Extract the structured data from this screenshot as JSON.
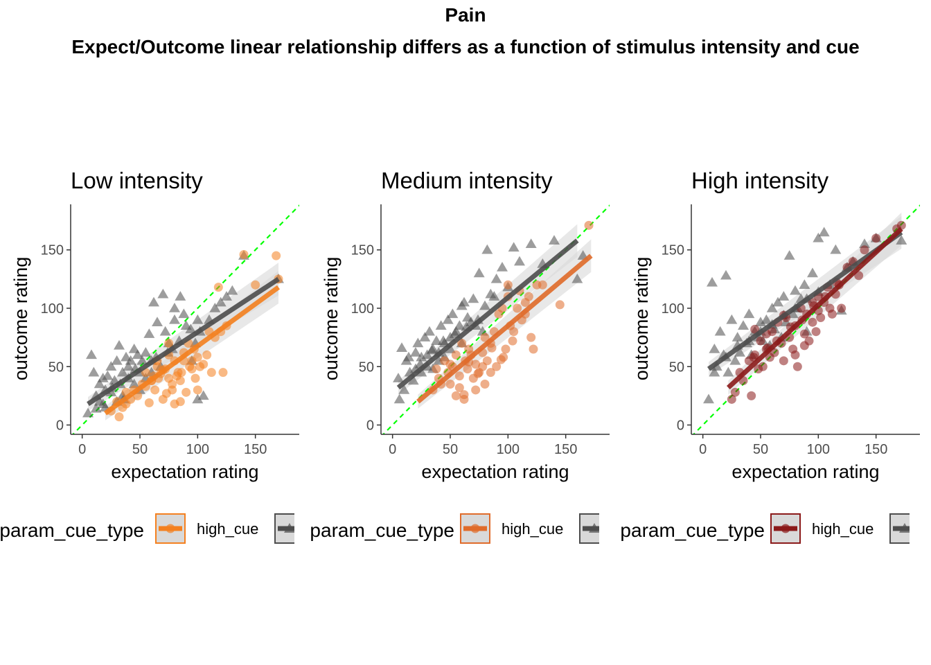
{
  "figure": {
    "title": "Pain",
    "subtitle": "Expect/Outcome linear relationship differs as a function of stimulus intensity and cue"
  },
  "colors": {
    "background": "#ffffff",
    "axis": "#333333",
    "tick_text": "#4d4d4d",
    "identity_line": "#00ff00",
    "low_cue": "#4d4d4d",
    "ribbon": "#d9d9d9"
  },
  "chart_data": [
    {
      "type": "scatter",
      "title": "Low intensity",
      "xlabel": "expectation rating",
      "ylabel": "outcome rating",
      "xlim": [
        -10,
        188
      ],
      "ylim": [
        -8,
        189
      ],
      "xticks": [
        0,
        50,
        100,
        150
      ],
      "yticks": [
        0,
        50,
        100,
        150
      ],
      "grid": false,
      "identity_line": true,
      "high_color": "#f4801f",
      "legend": {
        "title": "param_cue_type",
        "items": [
          "high_cue"
        ],
        "position": "bottom"
      },
      "series": [
        {
          "name": "high_cue",
          "marker": "circle",
          "fit": {
            "x": [
              20,
              170
            ],
            "y": [
              10,
              118
            ]
          },
          "x": [
            32,
            25,
            38,
            45,
            52,
            55,
            58,
            60,
            62,
            63,
            65,
            66,
            68,
            70,
            72,
            73,
            75,
            75,
            78,
            80,
            80,
            82,
            85,
            85,
            86,
            88,
            90,
            92,
            95,
            95,
            97,
            98,
            100,
            100,
            102,
            105,
            108,
            110,
            112,
            115,
            118,
            120,
            122,
            125,
            140,
            150,
            168,
            170,
            55,
            65,
            48,
            42,
            38,
            35,
            30,
            75,
            83,
            88,
            93,
            60,
            70,
            78
          ],
          "y": [
            7,
            12,
            18,
            30,
            35,
            45,
            19,
            38,
            42,
            30,
            55,
            40,
            44,
            22,
            48,
            27,
            40,
            60,
            35,
            18,
            55,
            42,
            20,
            38,
            45,
            62,
            28,
            70,
            48,
            55,
            65,
            40,
            30,
            58,
            50,
            52,
            60,
            80,
            45,
            75,
            118,
            80,
            45,
            85,
            146,
            120,
            145,
            125,
            33,
            50,
            25,
            22,
            28,
            15,
            20,
            70,
            45,
            55,
            50,
            38,
            47,
            30
          ]
        },
        {
          "name": "",
          "marker": "triangle",
          "fit": {
            "x": [
              5,
              170
            ],
            "y": [
              18,
              125
            ]
          },
          "x": [
            5,
            8,
            10,
            12,
            15,
            15,
            18,
            20,
            20,
            22,
            25,
            25,
            28,
            30,
            30,
            32,
            33,
            35,
            35,
            38,
            40,
            40,
            42,
            45,
            45,
            48,
            50,
            50,
            52,
            55,
            55,
            58,
            60,
            60,
            62,
            65,
            68,
            70,
            72,
            75,
            78,
            80,
            80,
            85,
            88,
            90,
            95,
            98,
            100,
            100,
            102,
            105,
            110,
            115,
            120,
            125,
            130,
            140,
            170,
            12,
            18,
            26,
            36,
            46,
            64,
            74,
            84,
            94
          ],
          "y": [
            10,
            60,
            45,
            25,
            35,
            20,
            40,
            15,
            30,
            42,
            50,
            28,
            38,
            55,
            20,
            68,
            35,
            45,
            25,
            58,
            50,
            40,
            55,
            65,
            35,
            60,
            45,
            30,
            55,
            62,
            40,
            78,
            55,
            45,
            105,
            88,
            50,
            112,
            80,
            70,
            65,
            90,
            100,
            110,
            95,
            85,
            55,
            70,
            22,
            90,
            80,
            25,
            90,
            100,
            105,
            110,
            115,
            145,
            125,
            14,
            18,
            32,
            22,
            48,
            58,
            62,
            72,
            82
          ]
        }
      ]
    },
    {
      "type": "scatter",
      "title": "Medium intensity",
      "xlabel": "expectation rating",
      "ylabel": "outcome rating",
      "xlim": [
        -10,
        188
      ],
      "ylim": [
        -8,
        189
      ],
      "xticks": [
        0,
        50,
        100,
        150
      ],
      "yticks": [
        0,
        50,
        100,
        150
      ],
      "grid": false,
      "identity_line": true,
      "high_color": "#e06b2a",
      "legend": {
        "title": "param_cue_type",
        "items": [
          "high_cue"
        ],
        "position": "bottom"
      },
      "series": [
        {
          "name": "high_cue",
          "marker": "circle",
          "fit": {
            "x": [
              22,
              172
            ],
            "y": [
              20,
              145
            ]
          },
          "x": [
            35,
            40,
            45,
            48,
            50,
            52,
            55,
            55,
            58,
            60,
            62,
            63,
            65,
            66,
            68,
            70,
            72,
            72,
            75,
            78,
            80,
            80,
            82,
            85,
            85,
            88,
            90,
            92,
            95,
            96,
            98,
            100,
            100,
            102,
            105,
            108,
            110,
            112,
            115,
            118,
            120,
            122,
            125,
            130,
            145,
            170,
            42,
            58,
            66,
            74,
            86,
            94,
            104,
            115,
            50,
            38,
            62,
            78
          ],
          "y": [
            30,
            40,
            55,
            45,
            35,
            50,
            25,
            60,
            42,
            70,
            22,
            55,
            48,
            65,
            60,
            40,
            30,
            52,
            45,
            62,
            35,
            75,
            55,
            70,
            45,
            80,
            50,
            95,
            100,
            58,
            65,
            110,
            120,
            85,
            80,
            100,
            115,
            90,
            95,
            110,
            75,
            65,
            120,
            120,
            103,
            171,
            35,
            32,
            54,
            44,
            66,
            56,
            72,
            105,
            52,
            48,
            26,
            50
          ]
        },
        {
          "name": "",
          "marker": "triangle",
          "fit": {
            "x": [
              5,
              160
            ],
            "y": [
              32,
              158
            ]
          },
          "x": [
            5,
            8,
            10,
            12,
            15,
            18,
            20,
            20,
            22,
            25,
            25,
            28,
            30,
            30,
            32,
            35,
            35,
            38,
            40,
            40,
            42,
            45,
            45,
            48,
            50,
            50,
            52,
            55,
            58,
            60,
            60,
            62,
            65,
            68,
            70,
            72,
            75,
            78,
            80,
            82,
            85,
            88,
            90,
            95,
            100,
            105,
            110,
            120,
            130,
            140,
            160,
            165,
            6,
            14,
            24,
            34,
            44,
            54,
            64,
            74
          ],
          "y": [
            40,
            66,
            30,
            55,
            45,
            38,
            62,
            48,
            70,
            58,
            45,
            75,
            60,
            50,
            80,
            65,
            48,
            72,
            55,
            62,
            85,
            70,
            58,
            90,
            75,
            65,
            95,
            80,
            85,
            70,
            102,
            105,
            92,
            88,
            108,
            85,
            130,
            80,
            102,
            150,
            112,
            110,
            125,
            135,
            118,
            152,
            140,
            155,
            138,
            158,
            125,
            145,
            22,
            58,
            52,
            64,
            72,
            78,
            84,
            90
          ]
        }
      ]
    },
    {
      "type": "scatter",
      "title": "High intensity",
      "xlabel": "expectation rating",
      "ylabel": "outcome rating",
      "xlim": [
        -10,
        188
      ],
      "ylim": [
        -8,
        189
      ],
      "xticks": [
        0,
        50,
        100,
        150
      ],
      "yticks": [
        0,
        50,
        100,
        150
      ],
      "grid": false,
      "identity_line": true,
      "high_color": "#8b1a1a",
      "legend": {
        "title": "param_cue_type",
        "items": [
          "high_cue"
        ],
        "position": "bottom"
      },
      "series": [
        {
          "name": "high_cue",
          "marker": "circle",
          "fit": {
            "x": [
              22,
              172
            ],
            "y": [
              32,
              168
            ]
          },
          "x": [
            25,
            28,
            32,
            35,
            40,
            42,
            45,
            48,
            50,
            52,
            55,
            58,
            60,
            62,
            65,
            68,
            70,
            72,
            75,
            78,
            80,
            80,
            82,
            85,
            88,
            90,
            92,
            95,
            95,
            98,
            100,
            100,
            102,
            105,
            108,
            110,
            112,
            115,
            118,
            120,
            125,
            130,
            135,
            140,
            150,
            168,
            172,
            44,
            56,
            64,
            76,
            86,
            96,
            106,
            116,
            45,
            55,
            70,
            88
          ],
          "y": [
            22,
            28,
            45,
            38,
            55,
            25,
            60,
            48,
            72,
            50,
            65,
            58,
            80,
            62,
            88,
            70,
            55,
            92,
            75,
            65,
            85,
            60,
            50,
            100,
            78,
            95,
            72,
            105,
            88,
            80,
            110,
            98,
            92,
            105,
            118,
            100,
            95,
            112,
            120,
            100,
            135,
            140,
            128,
            150,
            160,
            168,
            171,
            58,
            66,
            72,
            84,
            90,
            102,
            110,
            122,
            82,
            78,
            94,
            68
          ]
        },
        {
          "name": "",
          "marker": "triangle",
          "fit": {
            "x": [
              5,
              172
            ],
            "y": [
              48,
              165
            ]
          },
          "x": [
            5,
            8,
            10,
            12,
            15,
            18,
            20,
            22,
            25,
            28,
            30,
            32,
            35,
            38,
            40,
            42,
            45,
            48,
            50,
            52,
            55,
            58,
            60,
            62,
            65,
            68,
            70,
            72,
            75,
            78,
            80,
            82,
            85,
            88,
            90,
            95,
            100,
            105,
            110,
            115,
            120,
            125,
            130,
            140,
            150,
            172,
            10,
            20,
            30,
            40,
            50,
            60,
            70,
            80,
            90,
            100
          ],
          "y": [
            22,
            122,
            65,
            50,
            80,
            60,
            128,
            45,
            90,
            55,
            75,
            62,
            85,
            70,
            95,
            60,
            80,
            75,
            88,
            72,
            90,
            68,
            100,
            82,
            105,
            75,
            110,
            88,
            145,
            95,
            115,
            100,
            108,
            120,
            80,
            130,
            160,
            165,
            120,
            150,
            98,
            135,
            140,
            155,
            160,
            158,
            45,
            58,
            68,
            72,
            80,
            86,
            94,
            100,
            108,
            114
          ]
        }
      ]
    }
  ]
}
